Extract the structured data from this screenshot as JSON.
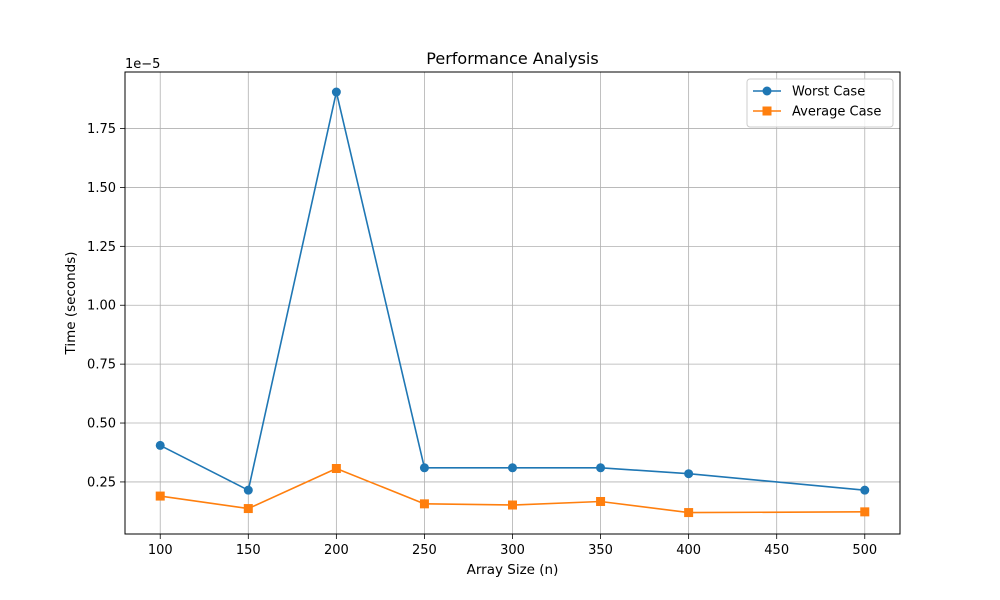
{
  "chart_data": {
    "type": "line",
    "title": "Performance Analysis",
    "xlabel": "Array Size (n)",
    "ylabel": "Time (seconds)",
    "y_offset_label": "1e−5",
    "xlim": [
      80,
      520
    ],
    "ylim": [
      2.9e-07,
      1.99e-05
    ],
    "xticks": [
      100,
      150,
      200,
      250,
      300,
      350,
      400,
      450,
      500
    ],
    "xtick_labels": [
      "100",
      "150",
      "200",
      "250",
      "300",
      "350",
      "400",
      "450",
      "500"
    ],
    "yticks": [
      2.5e-06,
      5e-06,
      7.5e-06,
      1e-05,
      1.25e-05,
      1.5e-05,
      1.75e-05
    ],
    "ytick_labels": [
      "0.25",
      "0.50",
      "0.75",
      "1.00",
      "1.25",
      "1.50",
      "1.75"
    ],
    "grid": true,
    "legend_position": "top-right",
    "x": [
      100,
      150,
      200,
      250,
      300,
      350,
      400,
      500
    ],
    "series": [
      {
        "name": "Worst Case",
        "color": "#1f77b4",
        "marker": "circle",
        "values": [
          4.05e-06,
          2.15e-06,
          1.905e-05,
          3.1e-06,
          3.1e-06,
          3.1e-06,
          2.85e-06,
          2.15e-06
        ]
      },
      {
        "name": "Average Case",
        "color": "#ff7f0e",
        "marker": "square",
        "values": [
          1.9e-06,
          1.37e-06,
          3.07e-06,
          1.57e-06,
          1.52e-06,
          1.67e-06,
          1.2e-06,
          1.23e-06
        ]
      }
    ]
  }
}
